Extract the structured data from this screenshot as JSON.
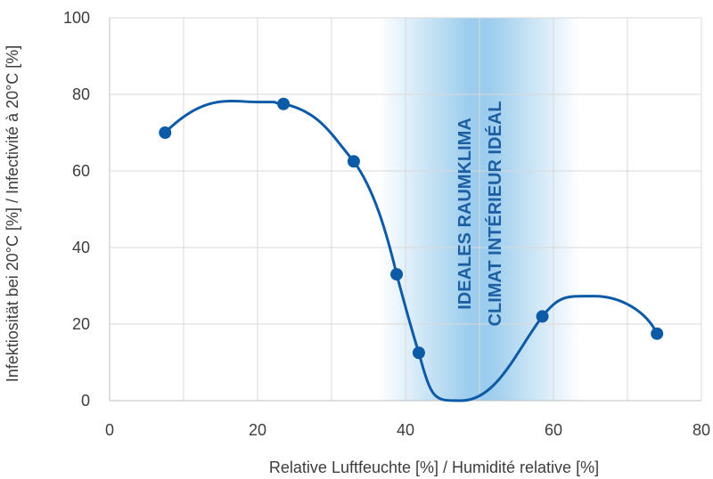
{
  "chart_data": {
    "type": "line",
    "xlabel": "Relative Luftfeuchte [%] / Humidité relative [%]",
    "ylabel": "Infektiosität bei 20°C  [%]  / Infectivité à 20°C [%]",
    "xlim": [
      0,
      80
    ],
    "ylim": [
      0,
      100
    ],
    "xticks": [
      0,
      20,
      40,
      60,
      80
    ],
    "yticks": [
      0,
      20,
      40,
      60,
      80,
      100
    ],
    "grid": true,
    "series": [
      {
        "values_x": [
          7.5,
          23.5,
          33,
          38.8,
          41.8,
          58.5,
          74
        ],
        "values_y": [
          70,
          77.5,
          62.5,
          33,
          12.5,
          22,
          17.5
        ]
      }
    ],
    "band": {
      "x_range": [
        40,
        60
      ],
      "labels": [
        "IDEALES RAUMKLIMA",
        "CLIMAT INTÉRIEUR IDÉAL"
      ]
    },
    "colors": {
      "line": "#0d5aa7",
      "marker": "#0d5aa7",
      "band": "#4aa3df",
      "band_text": "#1d5fa3"
    }
  }
}
